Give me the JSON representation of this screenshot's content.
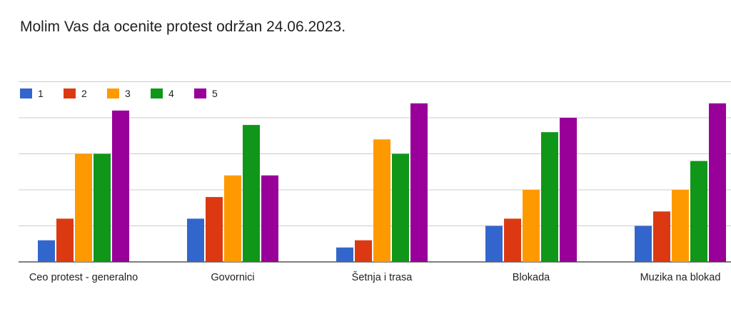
{
  "chart_data": {
    "type": "bar",
    "title": "Molim Vas da ocenite protest održan 24.06.2023.",
    "xlabel": "",
    "ylabel": "",
    "categories": [
      "Ceo protest - generalno",
      "Govornici",
      "Šetnja i trasa",
      "Blokada",
      "Muzika na blokad"
    ],
    "series": [
      {
        "name": "1",
        "color": "#3366cc",
        "values": [
          3,
          6,
          2,
          5,
          5
        ]
      },
      {
        "name": "2",
        "color": "#dc3912",
        "values": [
          6,
          9,
          3,
          6,
          7
        ]
      },
      {
        "name": "3",
        "color": "#ff9900",
        "values": [
          15,
          12,
          17,
          10,
          10
        ]
      },
      {
        "name": "4",
        "color": "#109618",
        "values": [
          15,
          19,
          15,
          18,
          14
        ]
      },
      {
        "name": "5",
        "color": "#990099",
        "values": [
          21,
          12,
          22,
          20,
          22
        ]
      }
    ],
    "ylim": [
      0,
      25
    ],
    "grid": true,
    "legend": "top-left"
  }
}
